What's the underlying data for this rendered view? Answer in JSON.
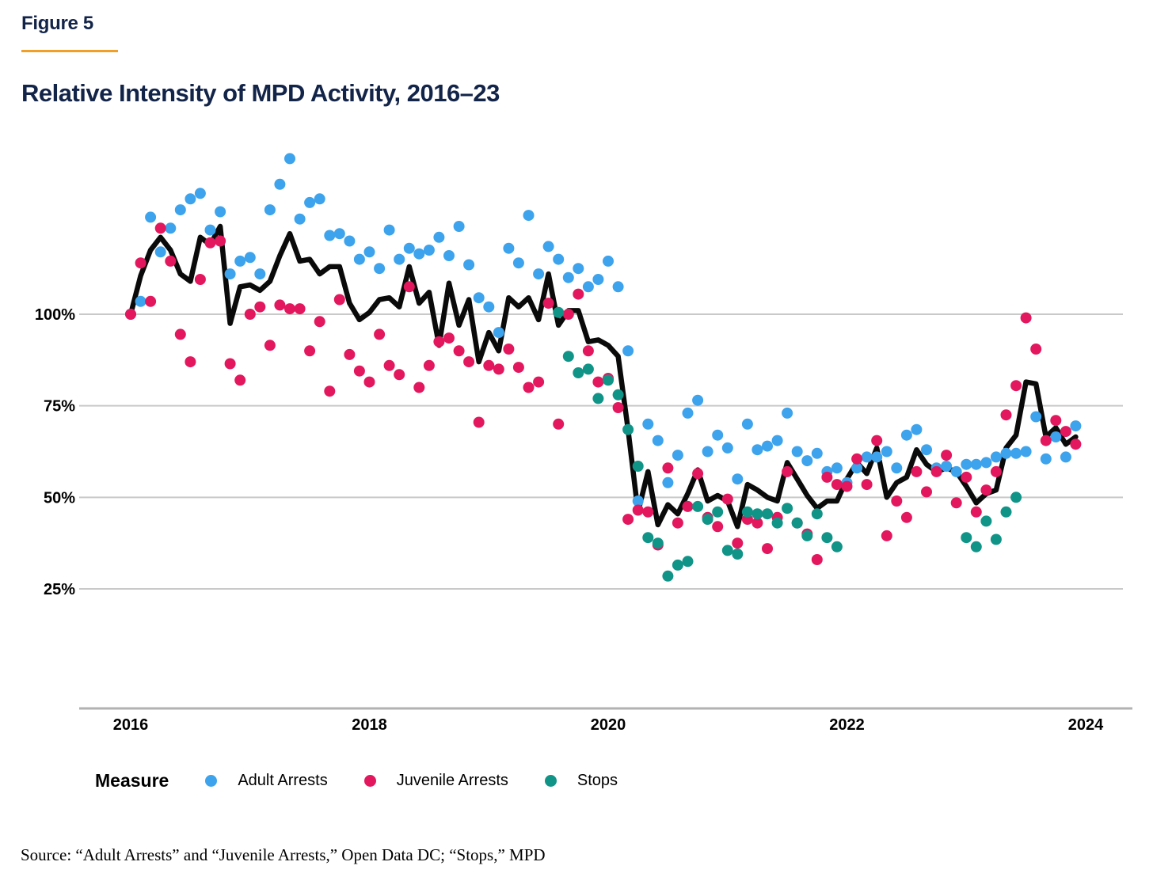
{
  "figure_label": "Figure 5",
  "title": "Relative Intensity of MPD Activity, 2016–23",
  "source": "Source: “Adult Arrests” and “Juvenile Arrests,” Open Data DC; “Stops,” MPD",
  "legend": {
    "label": "Measure",
    "items": [
      {
        "label": "Adult Arrests",
        "color": "#3da3ec"
      },
      {
        "label": "Juvenile Arrests",
        "color": "#e3175e"
      },
      {
        "label": "Stops",
        "color": "#109488"
      }
    ]
  },
  "colors": {
    "navy_heading": "#132449",
    "accent_rule": "#f0a028",
    "adult": "#3da3ec",
    "juvenile": "#e3175e",
    "stops": "#109488",
    "trend_line": "#0a0a0a",
    "gridline": "#c9c9c9",
    "axis_line": "#b2b2b2"
  },
  "chart_data": {
    "type": "scatter",
    "x_unit": "month",
    "x_start": "2016-01",
    "x_end": "2023-12",
    "points_per_series": 96,
    "x_ticks": [
      "2016",
      "2018",
      "2020",
      "2022",
      "2024"
    ],
    "x_tick_years": [
      2016,
      2018,
      2020,
      2022,
      2024
    ],
    "y_ticks": [
      "100%",
      "75%",
      "50%",
      "25%"
    ],
    "y_gridline_values": [
      100,
      75,
      50,
      25
    ],
    "ylim": [
      20,
      145
    ],
    "grid": "horizontal-only",
    "legend_position": "bottom",
    "series": [
      {
        "name": "Adult Arrests",
        "color_key": "adult",
        "values": [
          100,
          103.5,
          126.5,
          117,
          123.5,
          128.5,
          131.5,
          133,
          123,
          128,
          111,
          114.5,
          115.5,
          111,
          128.5,
          135.5,
          142.5,
          126,
          130.5,
          131.5,
          121.5,
          122,
          120,
          115,
          117,
          112.5,
          123,
          115,
          118,
          116.5,
          117.5,
          121,
          116,
          124,
          113.5,
          104.5,
          102,
          95,
          118,
          114,
          127,
          111,
          118.5,
          115,
          110,
          112.5,
          107.5,
          109.5,
          114.5,
          107.5,
          90,
          49,
          70,
          65.5,
          54,
          61.5,
          73,
          76.5,
          62.5,
          67,
          63.5,
          55,
          70,
          63,
          64,
          65.5,
          73,
          62.5,
          60,
          62,
          57,
          58,
          54,
          58,
          61,
          61,
          62.5,
          58,
          67,
          68.5,
          63,
          58,
          58.5,
          57,
          59,
          59,
          59.5,
          61,
          62,
          62,
          62.5,
          72,
          60.5,
          66.5,
          61,
          69.5
        ]
      },
      {
        "name": "Juvenile Arrests",
        "color_key": "juvenile",
        "values": [
          100,
          114,
          103.5,
          123.5,
          114.5,
          94.5,
          87,
          109.5,
          119.5,
          120,
          86.5,
          82,
          100,
          102,
          91.5,
          102.5,
          101.5,
          101.5,
          90,
          98,
          79,
          104,
          89,
          84.5,
          81.5,
          94.5,
          86,
          83.5,
          107.5,
          80,
          86,
          92.5,
          93.5,
          90,
          87,
          70.5,
          86,
          85,
          90.5,
          85.5,
          80,
          81.5,
          103,
          70,
          100,
          105.5,
          90,
          81.5,
          82.5,
          74.5,
          44,
          46.5,
          46,
          37,
          58,
          43,
          47.5,
          56.5,
          44.5,
          42,
          49.5,
          37.5,
          44,
          43,
          36,
          44.5,
          57,
          43,
          40,
          33,
          55.5,
          53.5,
          53,
          60.5,
          53.5,
          65.5,
          39.5,
          49,
          44.5,
          57,
          51.5,
          57,
          61.5,
          48.5,
          55.5,
          46,
          52,
          57,
          72.5,
          80.5,
          99,
          90.5,
          65.5,
          71,
          68,
          64.5
        ]
      },
      {
        "name": "Stops",
        "color_key": "stops",
        "values": [
          null,
          null,
          null,
          null,
          null,
          null,
          null,
          null,
          null,
          null,
          null,
          null,
          null,
          null,
          null,
          null,
          null,
          null,
          null,
          null,
          null,
          null,
          null,
          null,
          null,
          null,
          null,
          null,
          null,
          null,
          null,
          null,
          null,
          null,
          null,
          null,
          null,
          null,
          null,
          null,
          null,
          null,
          null,
          100.5,
          88.5,
          84,
          85,
          77,
          82,
          78,
          68.5,
          58.5,
          39,
          37.5,
          28.5,
          31.5,
          32.5,
          47.5,
          44,
          46,
          35.5,
          34.5,
          46,
          45.5,
          45.5,
          43,
          47,
          43,
          39.5,
          45.5,
          39,
          36.5,
          null,
          null,
          null,
          null,
          null,
          null,
          null,
          null,
          null,
          null,
          null,
          null,
          39,
          36.5,
          43.5,
          38.5,
          46,
          50,
          null,
          null,
          null,
          null,
          null,
          null
        ]
      }
    ],
    "trend_line": {
      "name": "All measures trend",
      "color_key": "trend_line",
      "values": [
        100,
        110.5,
        117.5,
        121,
        117.5,
        111,
        109,
        121,
        119,
        124,
        97.5,
        107.5,
        108,
        106.5,
        109,
        116,
        122,
        114.5,
        115,
        111,
        113,
        113,
        103,
        98.5,
        100.5,
        104,
        104.5,
        102,
        113,
        103,
        106,
        91.5,
        108.5,
        97,
        104,
        87,
        95,
        90,
        104.5,
        102,
        104.5,
        98.5,
        111,
        97,
        101,
        101,
        92.5,
        93,
        91.5,
        88.5,
        68.5,
        46,
        57,
        42.5,
        48,
        45.5,
        51,
        57.5,
        49,
        50.5,
        49,
        42,
        53.5,
        52,
        50,
        49,
        59.5,
        55,
        50.5,
        47,
        49,
        49,
        55,
        59.5,
        56.5,
        63.5,
        50,
        54,
        55.5,
        63,
        59,
        57,
        58,
        57,
        53,
        48.5,
        51,
        52,
        63.5,
        67,
        81.5,
        81,
        66.5,
        69,
        64.5,
        66.5
      ]
    }
  }
}
